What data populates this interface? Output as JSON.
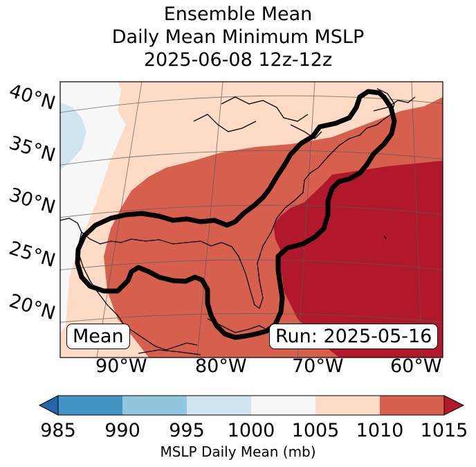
{
  "title": {
    "line1": "Ensemble Mean",
    "line2": "Daily Mean Minimum MSLP",
    "line3": "2025-06-08 12z-12z"
  },
  "map": {
    "lat_labels": [
      "40°N",
      "35°N",
      "30°N",
      "25°N",
      "20°N"
    ],
    "lon_labels": [
      "90°W",
      "80°W",
      "70°W",
      "60°W"
    ],
    "mean_box": "Mean",
    "run_box": "Run: 2025-05-16",
    "mslp_range_mb": [
      1000,
      1015
    ],
    "colors": {
      "c1000_1005": "#f7f7f7",
      "c995_1000": "#d1e5f0",
      "c1005_1010": "#fddbc7",
      "c1010_1015": "#d6604d",
      "c1015_plus": "#b2182b",
      "contour": "#000000",
      "gridline": "#555555"
    }
  },
  "colorbar": {
    "label": "MSLP Daily Mean (mb)",
    "ticks": [
      "985",
      "990",
      "995",
      "1000",
      "1005",
      "1010",
      "1015"
    ],
    "segment_colors": [
      "#4393c3",
      "#92c5de",
      "#d1e5f0",
      "#f7f7f7",
      "#fddbc7",
      "#d6604d"
    ],
    "under_color": "#2166ac",
    "over_color": "#b2182b"
  }
}
